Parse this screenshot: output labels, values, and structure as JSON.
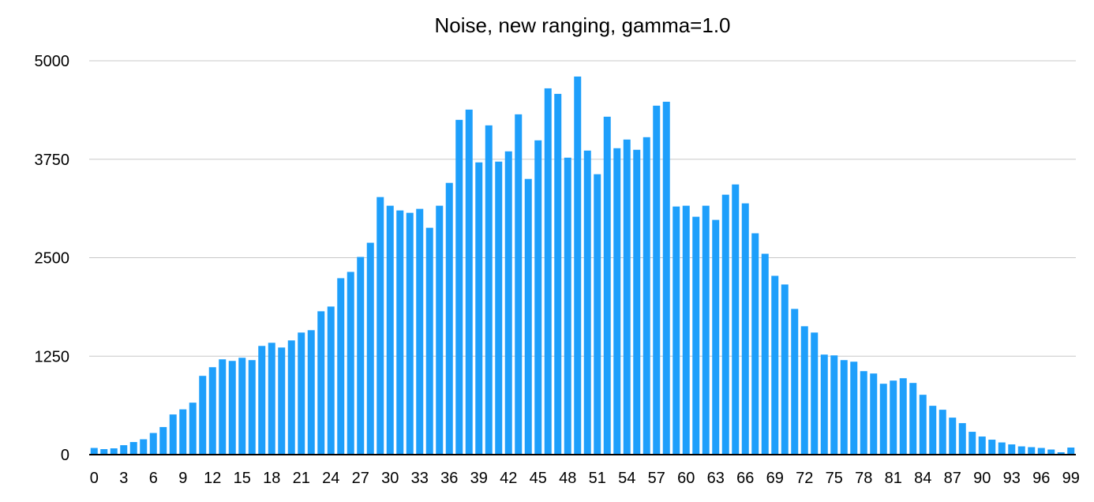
{
  "chart_data": {
    "type": "bar",
    "title": "Noise, new ranging, gamma=1.0",
    "xlabel": "",
    "ylabel": "",
    "ylim": [
      0,
      5000
    ],
    "y_ticks": [
      0,
      1250,
      2500,
      3750,
      5000
    ],
    "y_tick_labels": [
      "0",
      "1250",
      "2500",
      "3750",
      "5000"
    ],
    "x_tick_every": 3,
    "grid": true,
    "bar_color": "#1e9ffb",
    "categories": [
      0,
      1,
      2,
      3,
      4,
      5,
      6,
      7,
      8,
      9,
      10,
      11,
      12,
      13,
      14,
      15,
      16,
      17,
      18,
      19,
      20,
      21,
      22,
      23,
      24,
      25,
      26,
      27,
      28,
      29,
      30,
      31,
      32,
      33,
      34,
      35,
      36,
      37,
      38,
      39,
      40,
      41,
      42,
      43,
      44,
      45,
      46,
      47,
      48,
      49,
      50,
      51,
      52,
      53,
      54,
      55,
      56,
      57,
      58,
      59,
      60,
      61,
      62,
      63,
      64,
      65,
      66,
      67,
      68,
      69,
      70,
      71,
      72,
      73,
      74,
      75,
      76,
      77,
      78,
      79,
      80,
      81,
      82,
      83,
      84,
      85,
      86,
      87,
      88,
      89,
      90,
      91,
      92,
      93,
      94,
      95,
      96,
      97,
      98,
      99
    ],
    "values": [
      85,
      70,
      80,
      120,
      160,
      195,
      275,
      350,
      510,
      575,
      660,
      1000,
      1110,
      1210,
      1190,
      1230,
      1200,
      1380,
      1420,
      1360,
      1450,
      1550,
      1580,
      1820,
      1880,
      2240,
      2320,
      2510,
      2690,
      3270,
      3160,
      3100,
      3070,
      3120,
      2880,
      3160,
      3450,
      4250,
      4380,
      3710,
      4180,
      3720,
      3850,
      4320,
      3500,
      3990,
      4650,
      4580,
      3770,
      4800,
      3860,
      3560,
      4290,
      3890,
      4000,
      3870,
      4030,
      4430,
      4480,
      3150,
      3160,
      3020,
      3160,
      2980,
      3300,
      3430,
      3190,
      2810,
      2550,
      2270,
      2160,
      1850,
      1630,
      1550,
      1270,
      1260,
      1200,
      1180,
      1060,
      1030,
      900,
      940,
      970,
      910,
      760,
      620,
      570,
      470,
      400,
      290,
      230,
      190,
      155,
      130,
      105,
      95,
      85,
      65,
      30,
      90
    ]
  }
}
